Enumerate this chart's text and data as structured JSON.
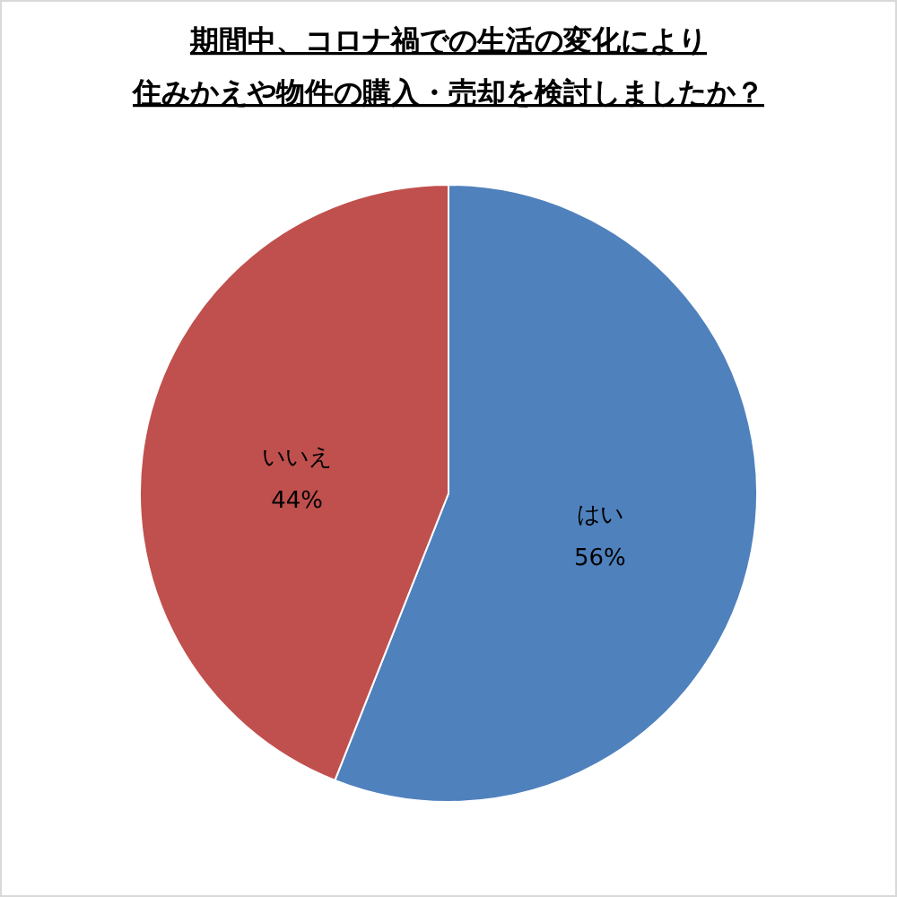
{
  "chart_data": {
    "type": "pie",
    "title": "期間中、コロナ禍での生活の変化により住みかえや物件の購入・売却を検討しましたか？",
    "categories": [
      "はい",
      "いいえ"
    ],
    "values": [
      56,
      44
    ],
    "colors": [
      "#4f81bd",
      "#c0504d"
    ],
    "value_labels": [
      "56%",
      "44%"
    ]
  }
}
